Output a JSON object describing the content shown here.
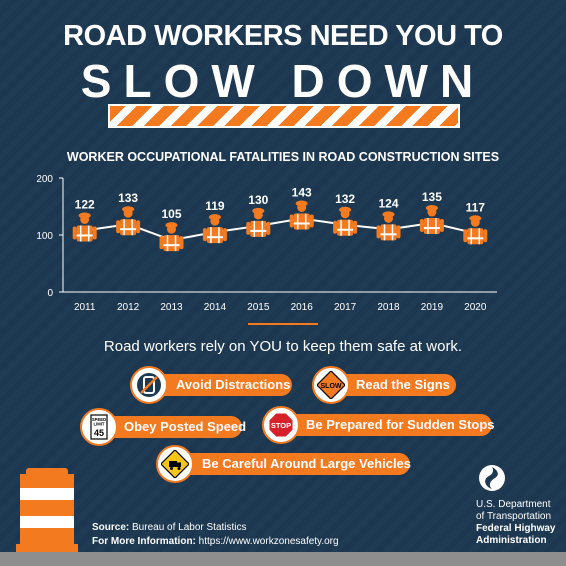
{
  "header": {
    "line1": "ROAD WORKERS NEED YOU TO",
    "line2": "SLOW DOWN"
  },
  "chart_data": {
    "type": "line",
    "title": "WORKER OCCUPATIONAL FATALITIES IN ROAD CONSTRUCTION SITES",
    "categories": [
      "2011",
      "2012",
      "2013",
      "2014",
      "2015",
      "2016",
      "2017",
      "2018",
      "2019",
      "2020"
    ],
    "values": [
      122,
      133,
      105,
      119,
      130,
      143,
      132,
      124,
      135,
      117
    ],
    "ylim": [
      0,
      200
    ],
    "yticks": [
      0,
      100,
      200
    ],
    "grid": false,
    "marker": "road-worker-icon",
    "colors": {
      "line": "#ffffff",
      "marker": "#f47a20",
      "axis": "#ffffff"
    }
  },
  "tagline": "Road workers rely on YOU to keep them safe at work.",
  "tips": [
    {
      "label": "Avoid Distractions",
      "icon": "no-phone-icon"
    },
    {
      "label": "Read the Signs",
      "icon": "slow-sign-icon",
      "icon_text": "SLOW"
    },
    {
      "label": "Obey Posted Speed",
      "icon": "speed-limit-icon",
      "icon_text": [
        "SPEED",
        "LIMIT",
        "45"
      ]
    },
    {
      "label": "Be Prepared for Sudden Stops",
      "icon": "stop-sign-icon",
      "icon_text": "STOP"
    },
    {
      "label": "Be Careful Around Large Vehicles",
      "icon": "truck-sign-icon"
    }
  ],
  "source": {
    "label": "Source:",
    "text": "Bureau of Labor Statistics",
    "info_label": "For More Information:",
    "info_text": "https://www.workzonesafety.org"
  },
  "agency": {
    "dept_line1": "U.S. Department",
    "dept_line2": "of Transportation",
    "fhwa_line1": "Federal Highway",
    "fhwa_line2": "Administration"
  },
  "colors": {
    "background": "#1e3a52",
    "accent": "#f47a20",
    "white": "#ffffff"
  }
}
